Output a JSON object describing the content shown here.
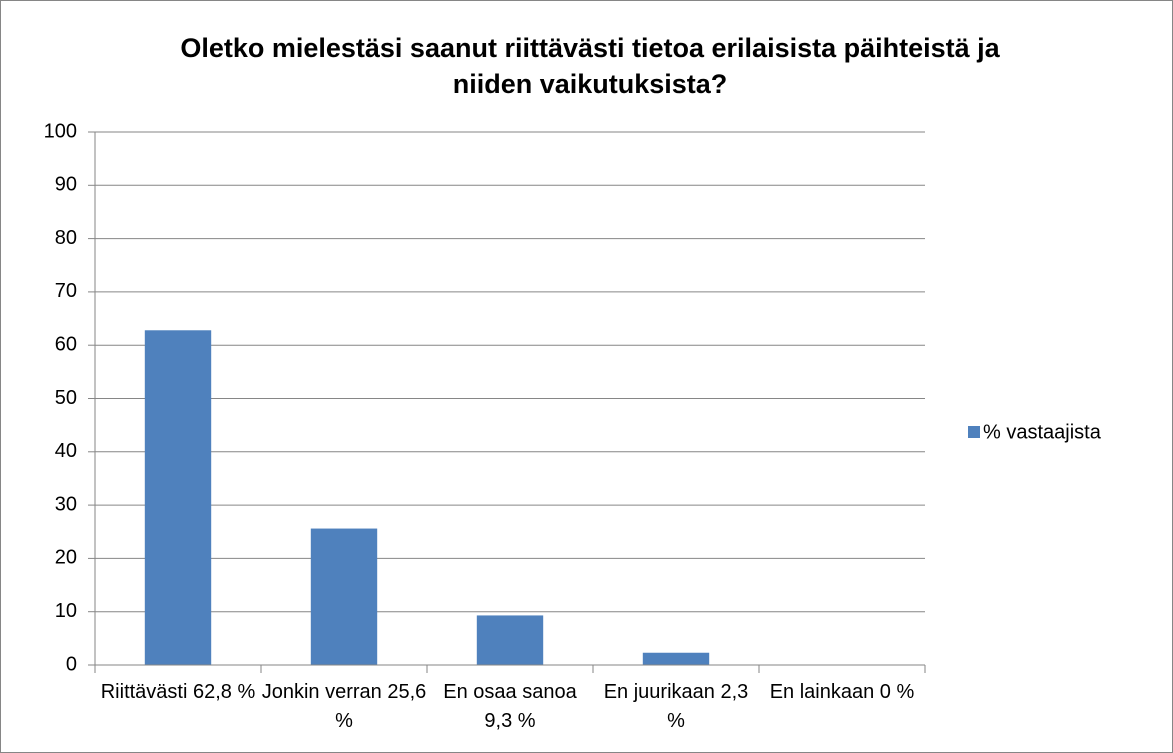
{
  "chart_data": {
    "type": "bar",
    "title": "Oletko mielestäsi saanut riittävästi tietoa erilaisista päihteistä ja niiden vaikutuksista?",
    "categories": [
      "Riittävästi 62,8 %",
      "Jonkin verran 25,6 %",
      "En osaa sanoa 9,3 %",
      "En juurikaan 2,3 %",
      "En lainkaan 0 %"
    ],
    "series": [
      {
        "name": "% vastaajista",
        "color": "#4f81bd",
        "values": [
          62.8,
          25.6,
          9.3,
          2.3,
          0
        ]
      }
    ],
    "ylim": [
      0,
      100
    ],
    "yticks": [
      0,
      10,
      20,
      30,
      40,
      50,
      60,
      70,
      80,
      90,
      100
    ],
    "grid": true,
    "legend": "right"
  }
}
